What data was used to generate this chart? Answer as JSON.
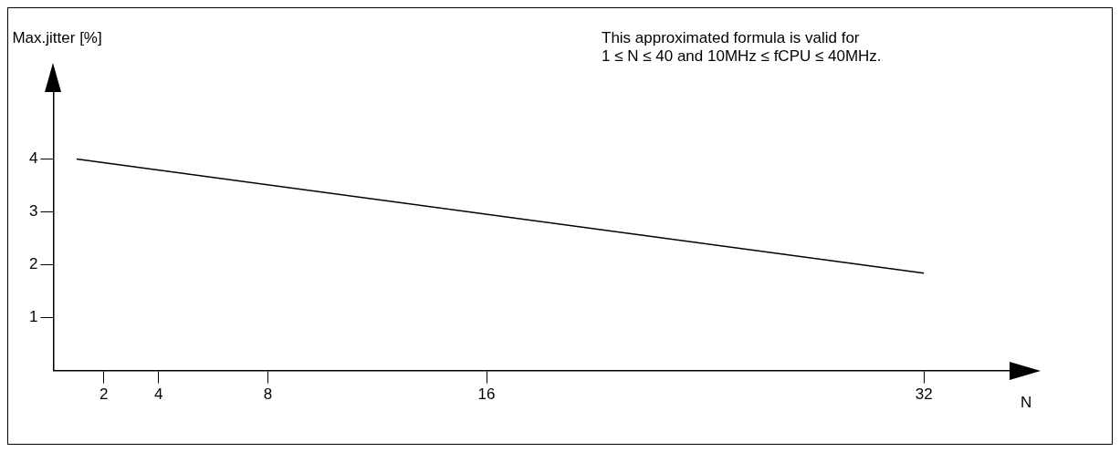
{
  "chart_data": {
    "type": "line",
    "xlabel": "N",
    "ylabel": "Max.jitter [%]",
    "annotations": [
      "This approximated formula is valid for\n1 ≤ N ≤ 40 and 10MHz ≤ fCPU ≤ 40MHz."
    ],
    "x": [
      1,
      32
    ],
    "series": [
      {
        "color": "#000000",
        "values": [
          4,
          1.84
        ]
      }
    ],
    "xlim": [
      0.15,
      35.2
    ],
    "ylim": [
      0,
      5.3
    ],
    "xticks": [
      2,
      4,
      8,
      16,
      32
    ],
    "yticks": [
      1,
      2,
      3,
      4
    ],
    "grid": false,
    "legend": false,
    "marker": "none",
    "line_style": "solid"
  }
}
